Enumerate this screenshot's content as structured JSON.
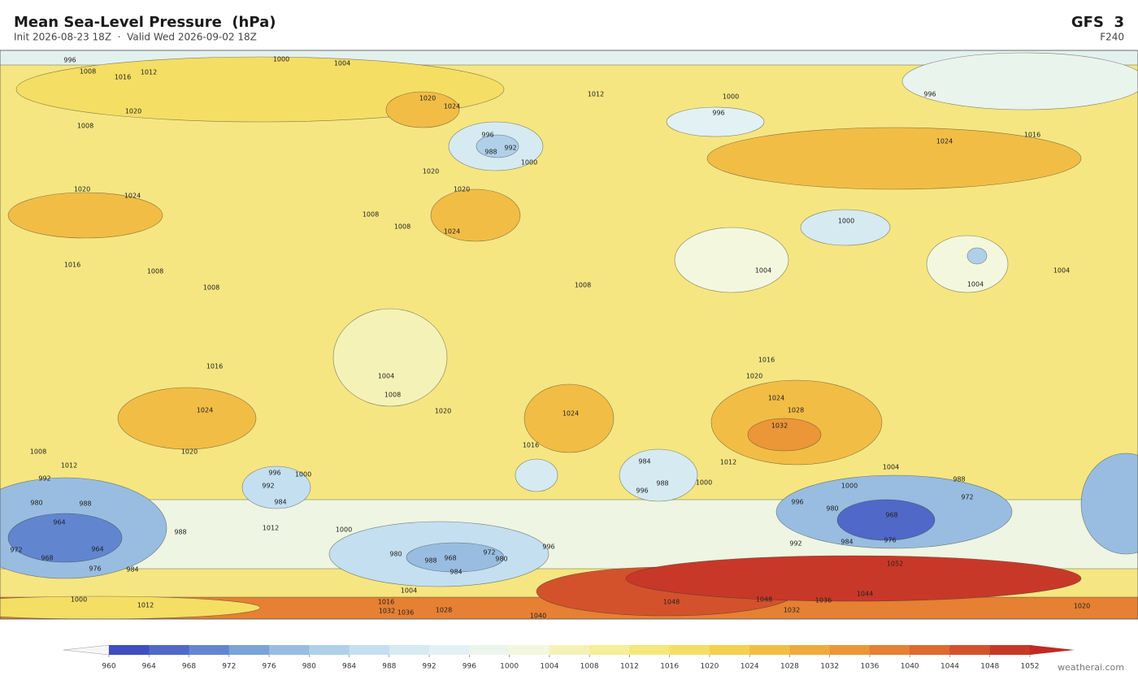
{
  "header": {
    "title": "Mean Sea-Level Pressure  (hPa)",
    "subtitle": "Init 2026-08-23 18Z  ·  Valid Wed 2026-09-02 18Z",
    "model": "GFS  3",
    "forecast_hour": "F240"
  },
  "map": {
    "contour_labels": [
      996,
      1000,
      1004,
      1008,
      1016,
      1012,
      1020,
      1008,
      1020,
      1024,
      996,
      988,
      992,
      1000,
      1012,
      1000,
      996,
      996,
      1024,
      1016,
      1020,
      1024,
      1020,
      1020,
      1008,
      1008,
      1024,
      1016,
      1008,
      1008,
      1008,
      1004,
      1004,
      1004,
      1000,
      1016,
      1016,
      1020,
      1024,
      1028,
      1032,
      1024,
      1020,
      1024,
      1020,
      1016,
      1004,
      1008,
      1012,
      1008,
      1012,
      992,
      980,
      988,
      964,
      964,
      972,
      968,
      976,
      984,
      1000,
      996,
      992,
      984,
      988,
      1012,
      1000,
      1052,
      1044,
      1048,
      1032,
      1036,
      1048,
      1032,
      1036,
      1028,
      1012,
      1000,
      1040,
      1020,
      1000,
      1004,
      988,
      972,
      968,
      976,
      984,
      992,
      980,
      996,
      1000,
      984,
      988,
      996,
      980,
      988,
      984,
      968,
      972,
      980,
      996,
      1004,
      1016
    ]
  },
  "colorbar": {
    "ticks": [
      960,
      964,
      968,
      972,
      976,
      980,
      984,
      988,
      992,
      996,
      1000,
      1004,
      1008,
      1012,
      1016,
      1020,
      1024,
      1028,
      1032,
      1036,
      1040,
      1044,
      1048,
      1052
    ],
    "colors": [
      "#3f4fc0",
      "#5068c8",
      "#6285d0",
      "#7aa3d8",
      "#98bde0",
      "#afd0e8",
      "#c4dff0",
      "#d6eaf2",
      "#e2f1f3",
      "#ecf5ec",
      "#f3f7dd",
      "#f5f2b8",
      "#f6ee98",
      "#f5e87a",
      "#f5de64",
      "#f5d050",
      "#f2bd45",
      "#efaa3d",
      "#eb9637",
      "#e68033",
      "#de6a2f",
      "#d4522b",
      "#c83828"
    ],
    "under_color": "#f6f6f6",
    "over_color": "#c02a22"
  },
  "footer": {
    "source": "weatherai.com"
  }
}
